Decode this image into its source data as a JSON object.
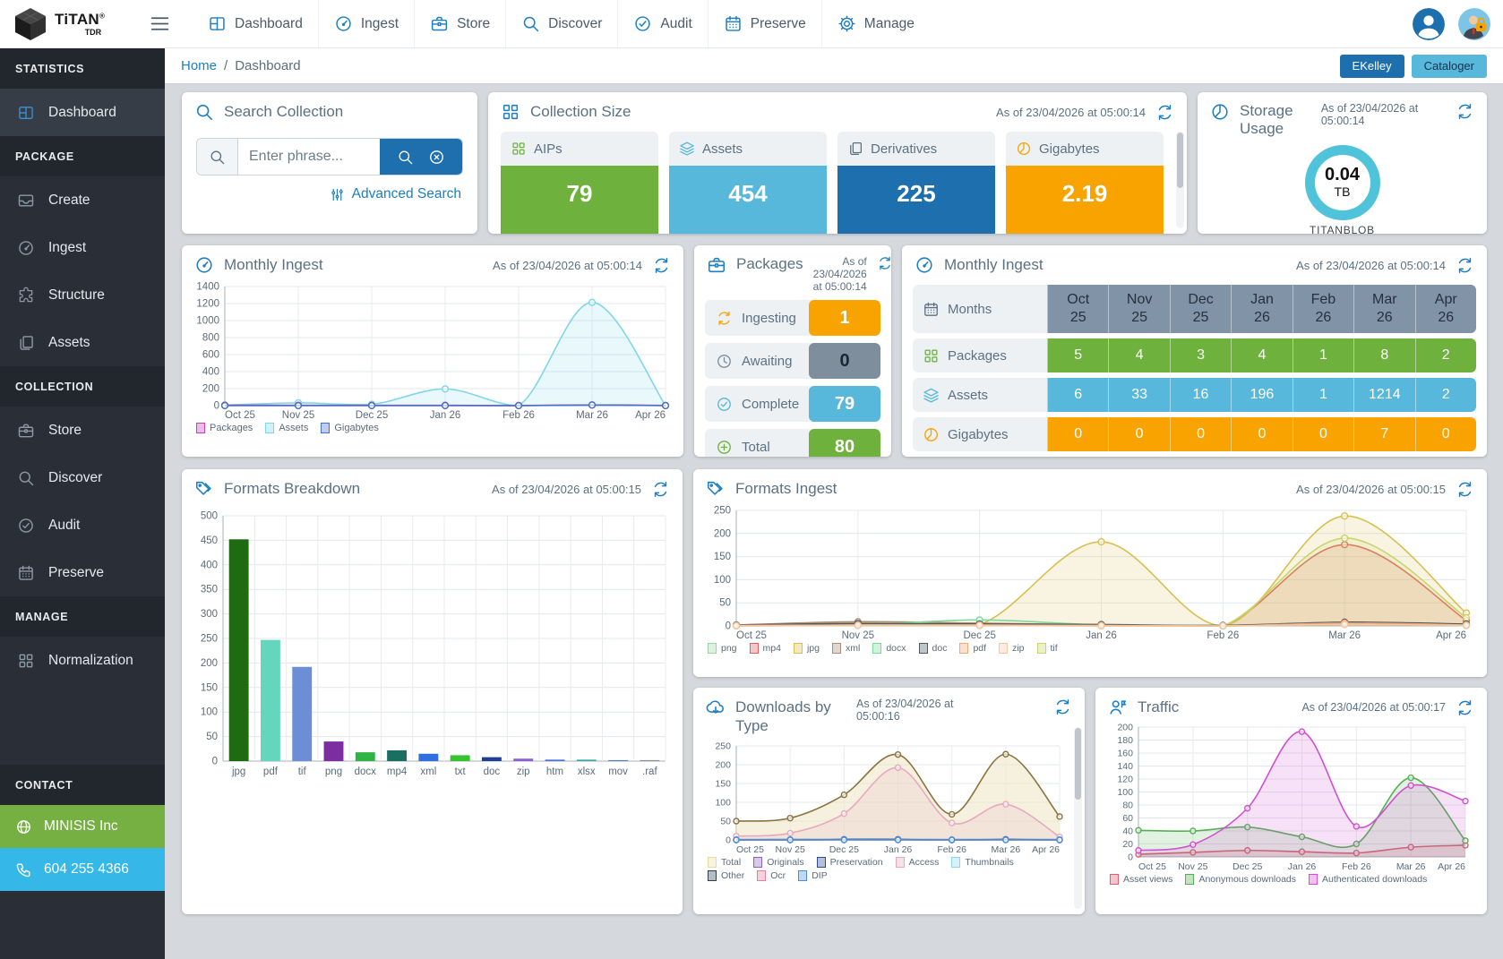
{
  "navbar": {
    "logo": {
      "brand": "TiTAN",
      "reg": "®",
      "sub": "TDR"
    },
    "items": [
      {
        "label": "Dashboard",
        "icon": "dashboard-icon"
      },
      {
        "label": "Ingest",
        "icon": "gauge-icon"
      },
      {
        "label": "Store",
        "icon": "briefcase-icon"
      },
      {
        "label": "Discover",
        "icon": "search-icon"
      },
      {
        "label": "Audit",
        "icon": "check-circle-icon"
      },
      {
        "label": "Preserve",
        "icon": "calendar-icon"
      },
      {
        "label": "Manage",
        "icon": "gear-icon"
      }
    ]
  },
  "header": {
    "breadcrumb": {
      "home": "Home",
      "separator": "/",
      "current": "Dashboard"
    },
    "buttons": [
      {
        "label": "EKelley",
        "bg": "#1d6fae"
      },
      {
        "label": "Cataloger",
        "bg": "#57b8dc"
      }
    ]
  },
  "sidebar": {
    "sections": [
      {
        "header": "STATISTICS",
        "items": [
          {
            "label": "Dashboard",
            "icon": "dashboard-icon"
          }
        ]
      },
      {
        "header": "PACKAGE",
        "items": [
          {
            "label": "Create",
            "icon": "inbox-icon"
          },
          {
            "label": "Ingest",
            "icon": "gauge-icon"
          },
          {
            "label": "Structure",
            "icon": "puzzle-icon"
          },
          {
            "label": "Assets",
            "icon": "pages-icon"
          }
        ]
      },
      {
        "header": "COLLECTION",
        "items": [
          {
            "label": "Store",
            "icon": "briefcase-icon"
          },
          {
            "label": "Discover",
            "icon": "search-icon"
          },
          {
            "label": "Audit",
            "icon": "check-circle-icon"
          },
          {
            "label": "Preserve",
            "icon": "calendar-icon"
          }
        ]
      },
      {
        "header": "MANAGE",
        "items": [
          {
            "label": "Normalization",
            "icon": "grid-icon"
          }
        ]
      }
    ],
    "contact": {
      "header": "CONTACT",
      "company": {
        "label": "MINISIS Inc",
        "bg": "#76b043",
        "icon": "globe-icon"
      },
      "phone": {
        "label": "604 255 4366",
        "bg": "#35b8e8",
        "icon": "phone-icon"
      }
    }
  },
  "cards": {
    "search": {
      "title": "Search Collection",
      "placeholder": "Enter phrase...",
      "advanced_label": "Advanced Search"
    },
    "collection_size": {
      "title": "Collection Size",
      "asof": "As of 23/04/2026 at 05:00:14",
      "tiles": [
        {
          "label": "AIPs",
          "value": "79",
          "color": "#6eb23d",
          "icon": "grid-icon"
        },
        {
          "label": "Assets",
          "value": "454",
          "color": "#57b8dc",
          "icon": "layers-icon"
        },
        {
          "label": "Derivatives",
          "value": "225",
          "color": "#1d6fae",
          "icon": "pages-icon"
        },
        {
          "label": "Gigabytes",
          "value": "2.19",
          "color": "#f8a300",
          "icon": "pie-icon"
        }
      ]
    },
    "storage": {
      "title": "Storage Usage",
      "asof": "As of 23/04/2026 at 05:00:14",
      "value": "0.04",
      "unit": "TB",
      "caption": "TITANBLOB",
      "ring_color": "#4fc3d9"
    },
    "packages": {
      "title": "Packages",
      "asof": "As of 23/04/2026 at 05:00:14",
      "rows": [
        {
          "label": "Ingesting",
          "value": "1",
          "color": "#f8a300",
          "fg": "#ffffff",
          "icon": "refresh-icon"
        },
        {
          "label": "Awaiting",
          "value": "0",
          "color": "#7e8e9c",
          "fg": "#1f2630",
          "icon": "clock-icon"
        },
        {
          "label": "Complete",
          "value": "79",
          "color": "#57b8dc",
          "fg": "#ffffff",
          "icon": "check-circle-icon"
        },
        {
          "label": "Total",
          "value": "80",
          "color": "#6eb23d",
          "fg": "#ffffff",
          "icon": "plus-circle-icon"
        }
      ]
    },
    "monthly_table": {
      "title": "Monthly Ingest",
      "asof": "As of 23/04/2026 at 05:00:14",
      "months_label": "Months",
      "months": [
        "Oct 25",
        "Nov 25",
        "Dec 25",
        "Jan 26",
        "Feb 26",
        "Mar 26",
        "Apr 26"
      ],
      "rows": [
        {
          "label": "Packages",
          "color": "#6eb23d",
          "icon": "grid-icon",
          "values": [
            "5",
            "4",
            "3",
            "4",
            "1",
            "8",
            "2"
          ]
        },
        {
          "label": "Assets",
          "color": "#57b8dc",
          "icon": "layers-icon",
          "values": [
            "6",
            "33",
            "16",
            "196",
            "1",
            "1214",
            "2"
          ]
        },
        {
          "label": "Gigabytes",
          "color": "#f8a300",
          "icon": "pie-icon",
          "values": [
            "0",
            "0",
            "0",
            "0",
            "0",
            "7",
            "0"
          ]
        }
      ]
    }
  },
  "chart_data": [
    {
      "id": "monthly-ingest-chart",
      "type": "line",
      "title": "Monthly Ingest",
      "asof": "As of 23/04/2026 at 05:00:14",
      "icon": "gauge-icon",
      "grid": true,
      "legend_position": "bottom",
      "x": [
        "Oct 25",
        "Nov 25",
        "Dec 25",
        "Jan 26",
        "Feb 26",
        "Mar 26",
        "Apr 26"
      ],
      "ylim": [
        0,
        1400
      ],
      "ystep": 200,
      "series": [
        {
          "name": "Packages",
          "color": "#c73fb8",
          "values": [
            5,
            4,
            3,
            4,
            1,
            8,
            2
          ],
          "fill": false
        },
        {
          "name": "Assets",
          "color": "#7fd6e8",
          "values": [
            6,
            33,
            16,
            196,
            1,
            1214,
            2
          ],
          "fill": true
        },
        {
          "name": "Gigabytes",
          "color": "#4472c4",
          "values": [
            0,
            0,
            0,
            0,
            0,
            7,
            0
          ],
          "fill": false
        }
      ]
    },
    {
      "id": "formats-breakdown-chart",
      "type": "bar",
      "title": "Formats Breakdown",
      "asof": "As of 23/04/2026 at 05:00:15",
      "icon": "tags-icon",
      "grid": true,
      "legend_position": "none",
      "categories": [
        "jpg",
        "pdf",
        "tif",
        "png",
        "docx",
        "mp4",
        "xml",
        "txt",
        "doc",
        "zip",
        "htm",
        "xlsx",
        "mov",
        ".raf"
      ],
      "values": [
        452,
        247,
        192,
        40,
        18,
        22,
        15,
        12,
        8,
        5,
        3,
        3,
        2,
        2
      ],
      "colors": [
        "#1e6b12",
        "#63d6bd",
        "#6b8ed4",
        "#7c2ea0",
        "#2fb344",
        "#1a6e62",
        "#2f6fe0",
        "#35c42f",
        "#1f3f8f",
        "#8a5fd4",
        "#4a6fd9",
        "#3aa6a0",
        "#5577cc",
        "#8a8f94"
      ],
      "ylim": [
        0,
        500
      ],
      "ystep": 50,
      "xlabel": "",
      "ylabel": ""
    },
    {
      "id": "formats-ingest-chart",
      "type": "line",
      "title": "Formats Ingest",
      "asof": "As of 23/04/2026 at 05:00:15",
      "icon": "tags-icon",
      "grid": true,
      "legend_position": "bottom",
      "x": [
        "Oct 25",
        "Nov 25",
        "Dec 25",
        "Jan 26",
        "Feb 26",
        "Mar 26",
        "Apr 26"
      ],
      "ylim": [
        0,
        250
      ],
      "ystep": 50,
      "series": [
        {
          "name": "png",
          "color": "#9fd4a8",
          "values": [
            1,
            2,
            2,
            1,
            0,
            4,
            1
          ],
          "fill": false
        },
        {
          "name": "mp4",
          "color": "#e06060",
          "values": [
            1,
            3,
            1,
            1,
            0,
            176,
            12
          ],
          "fill": true
        },
        {
          "name": "jpg",
          "color": "#d8c050",
          "values": [
            1,
            6,
            3,
            182,
            0,
            238,
            28
          ],
          "fill": true
        },
        {
          "name": "xml",
          "color": "#a88d78",
          "values": [
            2,
            9,
            6,
            2,
            1,
            6,
            2
          ],
          "fill": false
        },
        {
          "name": "docx",
          "color": "#7fd99a",
          "values": [
            1,
            2,
            13,
            2,
            0,
            4,
            1
          ],
          "fill": false
        },
        {
          "name": "doc",
          "color": "#4a5a63",
          "values": [
            2,
            5,
            4,
            3,
            1,
            8,
            4
          ],
          "fill": false
        },
        {
          "name": "pdf",
          "color": "#f0a875",
          "values": [
            1,
            2,
            2,
            1,
            0,
            6,
            2
          ],
          "fill": false
        },
        {
          "name": "zip",
          "color": "#f5c6a0",
          "values": [
            0,
            1,
            1,
            0,
            0,
            3,
            1
          ],
          "fill": false
        },
        {
          "name": "tif",
          "color": "#cbd36e",
          "values": [
            0,
            1,
            1,
            0,
            0,
            190,
            18
          ],
          "fill": true
        }
      ]
    },
    {
      "id": "downloads-chart",
      "type": "line",
      "title": "Downloads by Type",
      "asof": "As of 23/04/2026 at 05:00:16",
      "icon": "cloud-download-icon",
      "grid": true,
      "legend_position": "bottom",
      "x": [
        "Oct 25",
        "Nov 25",
        "Dec 25",
        "Jan 26",
        "Feb 26",
        "Mar 26",
        "Apr 26"
      ],
      "ylim": [
        0,
        250
      ],
      "ystep": 50,
      "series": [
        {
          "name": "Total",
          "color": "#8a7340",
          "legend_color": "#e6dca0",
          "values": [
            50,
            58,
            120,
            227,
            68,
            228,
            62
          ],
          "fill": true,
          "fill_color": "#efe8c8"
        },
        {
          "name": "Originals",
          "color": "#8a63c9",
          "values": [
            1,
            1,
            2,
            2,
            1,
            2,
            1
          ],
          "fill": false
        },
        {
          "name": "Preservation",
          "color": "#2b4a8f",
          "values": [
            0,
            1,
            1,
            1,
            0,
            1,
            0
          ],
          "fill": false
        },
        {
          "name": "Access",
          "color": "#e8a8c0",
          "values": [
            10,
            18,
            70,
            192,
            45,
            95,
            8
          ],
          "fill": true
        },
        {
          "name": "Thumbnails",
          "color": "#8fd4e8",
          "values": [
            1,
            1,
            2,
            2,
            1,
            2,
            1
          ],
          "fill": false
        },
        {
          "name": "Other",
          "color": "#2f3f52",
          "values": [
            0,
            0,
            1,
            1,
            0,
            1,
            0
          ],
          "fill": false
        },
        {
          "name": "Ocr",
          "color": "#e87f9a",
          "values": [
            0,
            0,
            0,
            0,
            0,
            0,
            0
          ],
          "fill": false
        },
        {
          "name": "DIP",
          "color": "#4a90d9",
          "values": [
            0,
            0,
            0,
            0,
            0,
            0,
            0
          ],
          "fill": false
        }
      ]
    },
    {
      "id": "traffic-chart",
      "type": "line",
      "title": "Traffic",
      "asof": "As of 23/04/2026 at 05:00:17",
      "icon": "people-icon",
      "grid": true,
      "legend_position": "bottom",
      "x": [
        "Oct 25",
        "Nov 25",
        "Dec 25",
        "Jan 26",
        "Feb 26",
        "Mar 26",
        "Apr 26"
      ],
      "ylim": [
        0,
        200
      ],
      "ystep": 20,
      "series": [
        {
          "name": "Asset views",
          "color": "#e05c6e",
          "values": [
            4,
            7,
            10,
            8,
            6,
            15,
            18
          ],
          "fill": true
        },
        {
          "name": "Anonymous downloads",
          "color": "#55b055",
          "values": [
            41,
            40,
            46,
            31,
            20,
            122,
            25
          ],
          "fill": true
        },
        {
          "name": "Authenticated downloads",
          "color": "#d24fd2",
          "values": [
            10,
            19,
            75,
            193,
            47,
            110,
            86
          ],
          "fill": true
        }
      ]
    }
  ]
}
